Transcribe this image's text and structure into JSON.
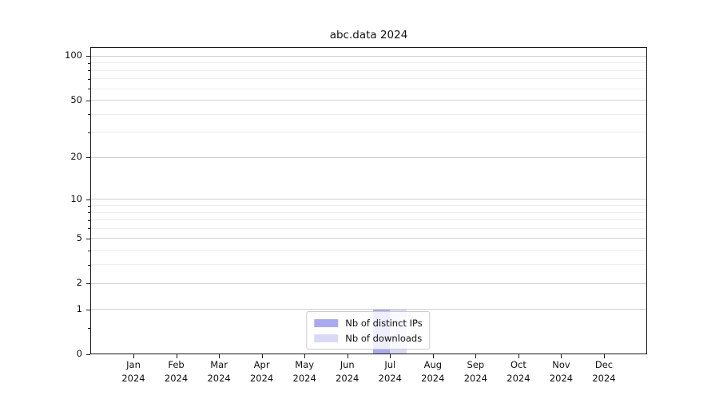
{
  "figure": {
    "title": "abc.data 2024"
  },
  "chart_data": {
    "type": "bar",
    "title": "abc.data 2024",
    "categories": [
      "Jan",
      "Feb",
      "Mar",
      "Apr",
      "May",
      "Jun",
      "Jul",
      "Aug",
      "Sep",
      "Oct",
      "Nov",
      "Dec"
    ],
    "category_year": "2024",
    "series": [
      {
        "name": "Nb of distinct IPs",
        "color": "#a9a9ef",
        "values": [
          0,
          0,
          0,
          0,
          0,
          0,
          1,
          0,
          0,
          0,
          0,
          0
        ]
      },
      {
        "name": "Nb of downloads",
        "color": "#d9d9f6",
        "values": [
          0,
          0,
          0,
          0,
          0,
          0,
          1,
          0,
          0,
          0,
          0,
          0
        ]
      }
    ],
    "xlabel": "",
    "ylabel": "",
    "yscale": "log1p",
    "ylim": [
      0,
      115
    ],
    "y_major_ticks": [
      0,
      1,
      2,
      5,
      10,
      20,
      50,
      100
    ],
    "y_minor_ticks": [
      0.5,
      3,
      4,
      6,
      7,
      8,
      9,
      30,
      40,
      60,
      70,
      80,
      90
    ],
    "grid": "horizontal-major-and-minor",
    "legend_position": "lower-center",
    "colors": {
      "grid_major": "#cfcfcf",
      "grid_minor": "#ededed",
      "spine": "#1a1a1a",
      "text": "#111111"
    }
  }
}
